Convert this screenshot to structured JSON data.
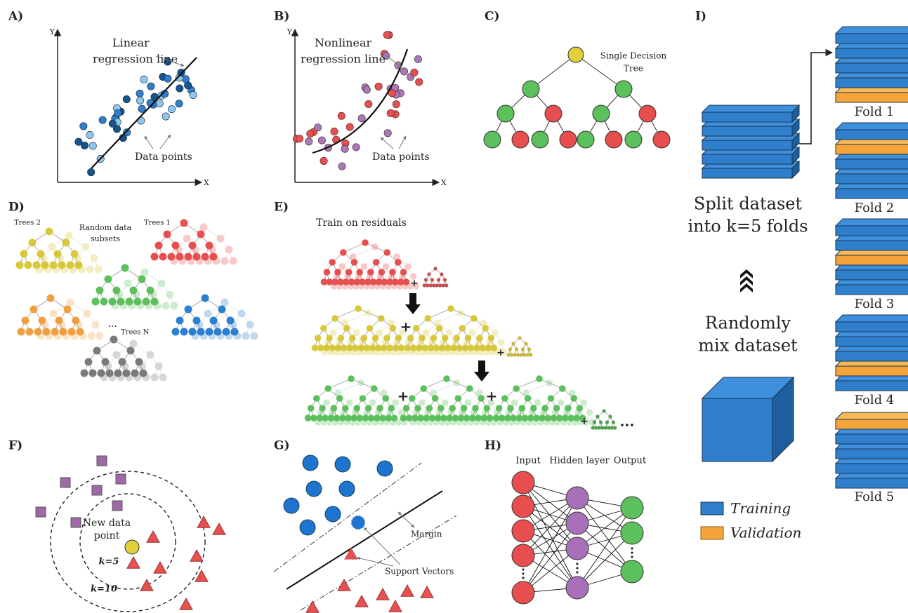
{
  "panels": {
    "a": {
      "label": "A)",
      "y_axis": "Y",
      "x_axis": "X",
      "line_label": [
        "Linear",
        "regression line"
      ],
      "points_label": "Data points"
    },
    "b": {
      "label": "B)",
      "y_axis": "Y",
      "x_axis": "X",
      "line_label": [
        "Nonlinear",
        "regression line"
      ],
      "points_label": "Data points"
    },
    "c": {
      "label": "C)",
      "title": [
        "Single Decision",
        "Tree"
      ]
    },
    "d": {
      "label": "D)",
      "tree_labels": [
        "Trees 2",
        "Trees 1",
        "Trees N"
      ],
      "subsets": [
        "Random data",
        "subsets"
      ],
      "ellipsis": "..."
    },
    "e": {
      "label": "E)",
      "title": "Train on residuals",
      "plus": "+",
      "ellipsis": "..."
    },
    "f": {
      "label": "F)",
      "new_point": [
        "New data",
        "point"
      ],
      "k_inner": "k=5",
      "k_outer": "k=10"
    },
    "g": {
      "label": "G)",
      "margin": "Margin",
      "support_vectors": "Support Vectors"
    },
    "h": {
      "label": "H)",
      "input": "Input",
      "hidden": "Hidden layer",
      "output": "Output"
    },
    "i": {
      "label": "I)",
      "split": [
        "Split dataset",
        "into k=5 folds"
      ],
      "mix": [
        "Randomly",
        "mix dataset"
      ],
      "legend": [
        "Training",
        "Validation"
      ],
      "folds": [
        "Fold 1",
        "Fold 2",
        "Fold 3",
        "Fold 4",
        "Fold 5"
      ]
    }
  }
}
